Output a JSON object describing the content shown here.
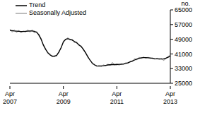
{
  "chart_data": {
    "type": "line",
    "y_label": "no.",
    "categories": [
      "Apr 2007",
      null,
      null,
      null,
      null,
      null,
      null,
      null,
      null,
      null,
      null,
      null,
      null,
      null,
      null,
      null,
      null,
      null,
      null,
      null,
      null,
      null,
      null,
      null,
      "Apr 2009",
      null,
      null,
      null,
      null,
      null,
      null,
      null,
      null,
      null,
      null,
      null,
      null,
      null,
      null,
      null,
      null,
      null,
      null,
      null,
      null,
      null,
      null,
      null,
      "Apr 2011",
      null,
      null,
      null,
      null,
      null,
      null,
      null,
      null,
      null,
      null,
      null,
      null,
      null,
      null,
      null,
      null,
      null,
      null,
      null,
      null,
      null,
      null,
      null,
      "Apr 2013"
    ],
    "series": [
      {
        "name": "Trend",
        "color": "#000000",
        "line_style": "solid",
        "values": [
          53800,
          53700,
          53500,
          53400,
          53300,
          53200,
          53200,
          53300,
          53400,
          53500,
          53500,
          53300,
          52800,
          51500,
          49000,
          46000,
          43500,
          41800,
          40500,
          39800,
          39700,
          40300,
          42000,
          44500,
          47500,
          49000,
          49300,
          49000,
          48500,
          47800,
          47000,
          46000,
          45000,
          43500,
          41500,
          39500,
          37500,
          36000,
          35000,
          34500,
          34400,
          34500,
          34600,
          34800,
          35000,
          35100,
          35200,
          35200,
          35200,
          35300,
          35300,
          35500,
          35800,
          36200,
          36700,
          37200,
          37700,
          38200,
          38600,
          38900,
          39000,
          39000,
          38900,
          38800,
          38600,
          38400,
          38300,
          38300,
          38200,
          38300,
          38700,
          39200,
          39800
        ]
      },
      {
        "name": "Seasonally Adjusted",
        "color": "#a6a6a6",
        "line_style": "solid",
        "values": [
          54500,
          53000,
          54000,
          52800,
          53800,
          52600,
          53500,
          52900,
          54000,
          53000,
          54000,
          52500,
          53200,
          50800,
          49500,
          45500,
          44000,
          41200,
          41000,
          39500,
          40200,
          39800,
          42500,
          44000,
          48000,
          48600,
          49800,
          48500,
          49000,
          47200,
          47500,
          45500,
          45400,
          43000,
          42000,
          39000,
          37800,
          35500,
          35400,
          34200,
          34800,
          34100,
          35000,
          34500,
          35400,
          34800,
          36300,
          35000,
          35600,
          34900,
          35700,
          35200,
          36200,
          35800,
          37000,
          36900,
          38400,
          37800,
          39200,
          38500,
          39400,
          38600,
          39200,
          38500,
          38900,
          38100,
          38700,
          37900,
          38600,
          37500,
          38400,
          39600,
          40300
        ]
      }
    ],
    "ylim": [
      25000,
      65000
    ],
    "yticks": [
      25000,
      33000,
      41000,
      49000,
      57000,
      65000
    ],
    "grid": false,
    "legend": "upper left"
  }
}
